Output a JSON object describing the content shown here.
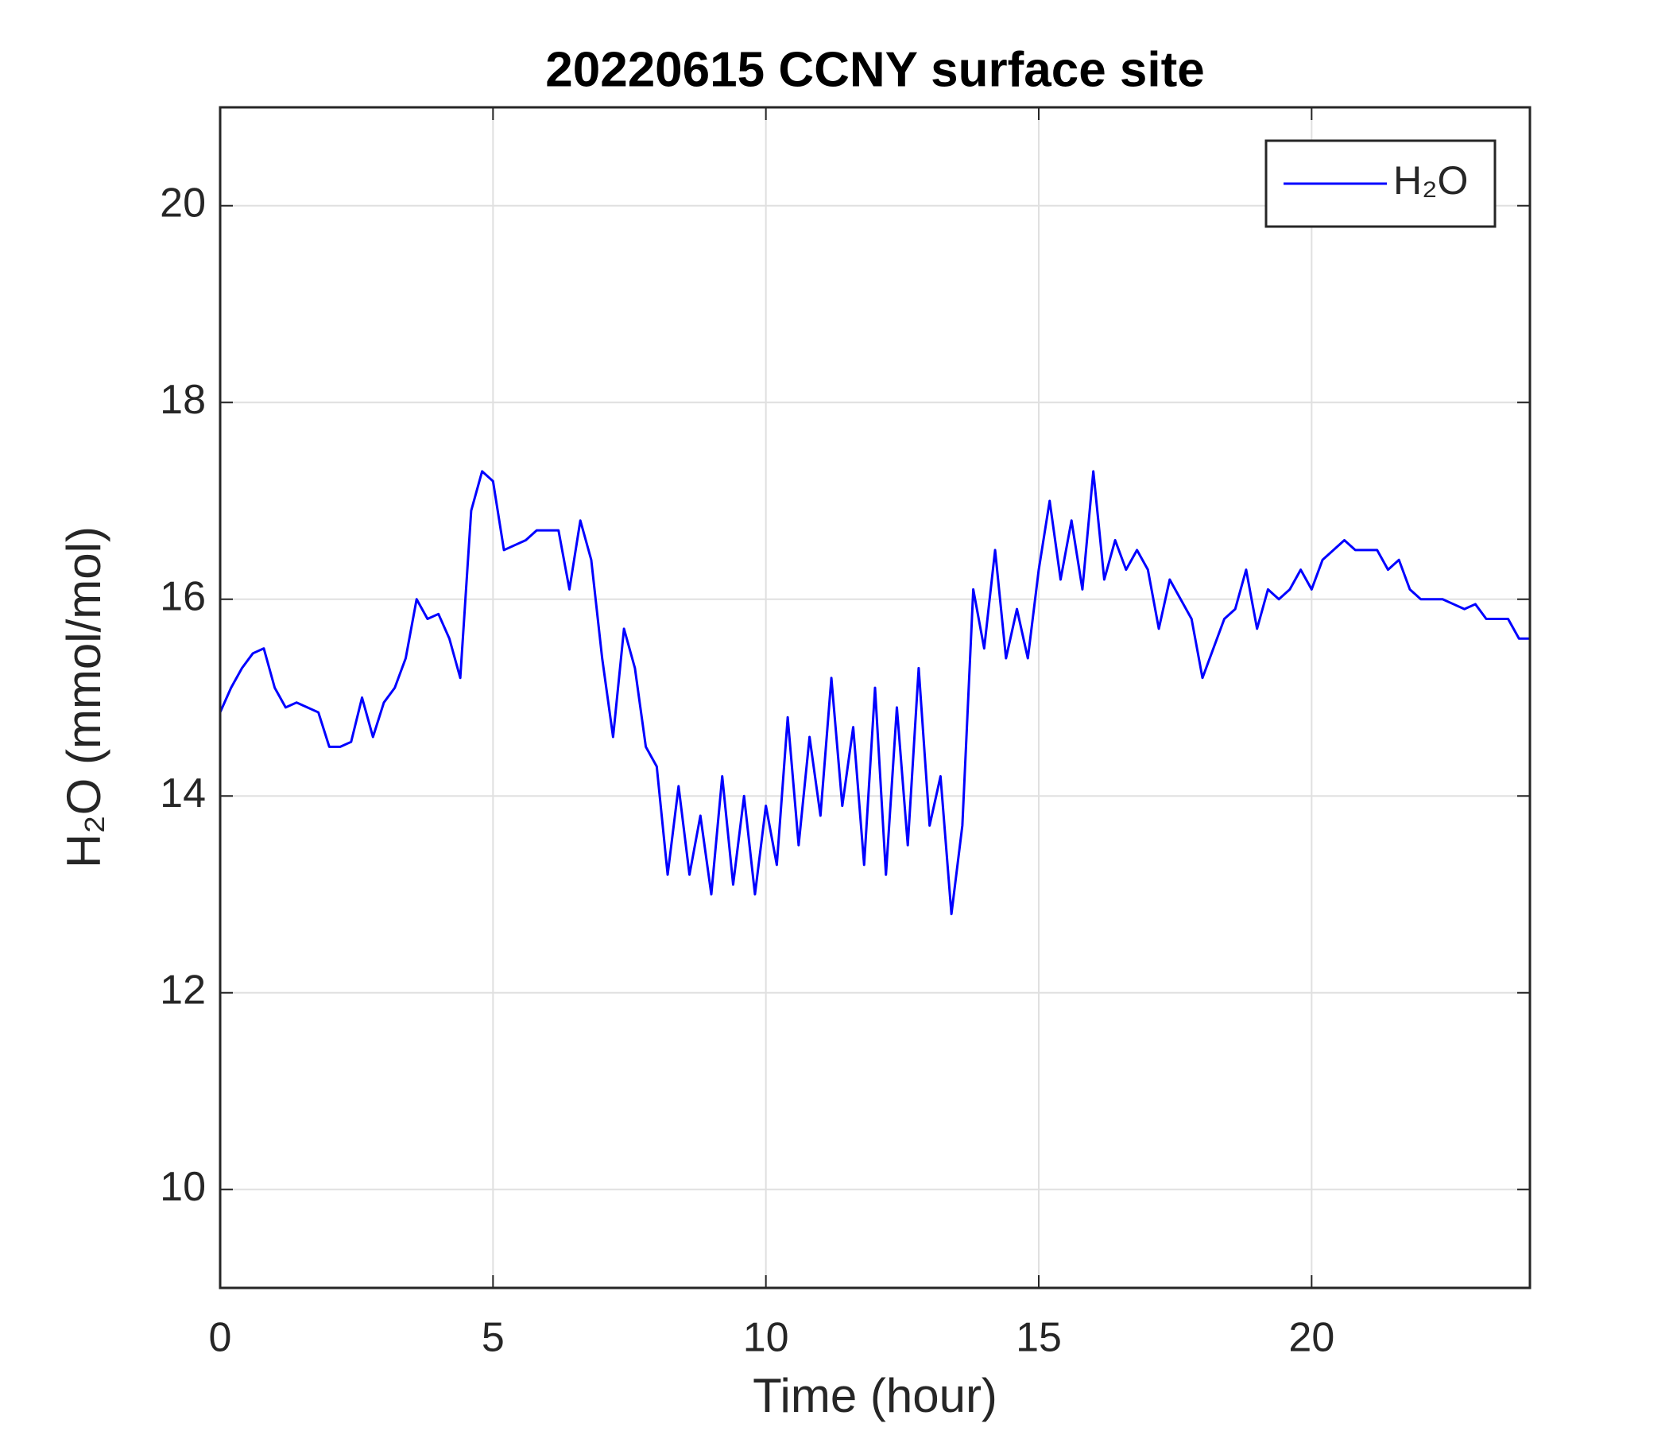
{
  "chart_data": {
    "type": "line",
    "title": "20220615 CCNY surface site",
    "x_label": "Time (hour)",
    "y_label": "H₂O (mmol/mol)",
    "x": [
      0,
      0.2,
      0.4,
      0.6,
      0.8,
      1,
      1.2,
      1.4,
      1.6,
      1.8,
      2,
      2.2,
      2.4,
      2.6,
      2.8,
      3,
      3.2,
      3.4,
      3.6,
      3.8,
      4,
      4.2,
      4.4,
      4.6,
      4.8,
      5,
      5.2,
      5.4,
      5.6,
      5.8,
      6,
      6.2,
      6.4,
      6.6,
      6.8,
      7,
      7.2,
      7.4,
      7.6,
      7.8,
      8,
      8.2,
      8.4,
      8.6,
      8.8,
      9,
      9.2,
      9.4,
      9.6,
      9.8,
      10,
      10.2,
      10.4,
      10.6,
      10.8,
      11,
      11.2,
      11.4,
      11.6,
      11.8,
      12,
      12.2,
      12.4,
      12.6,
      12.8,
      13,
      13.2,
      13.4,
      13.6,
      13.8,
      14,
      14.2,
      14.4,
      14.6,
      14.8,
      15,
      15.2,
      15.4,
      15.6,
      15.8,
      16,
      16.2,
      16.4,
      16.6,
      16.8,
      17,
      17.2,
      17.4,
      17.6,
      17.8,
      18,
      18.2,
      18.4,
      18.6,
      18.8,
      19,
      19.2,
      19.4,
      19.6,
      19.8,
      20,
      20.2,
      20.4,
      20.6,
      20.8,
      21,
      21.2,
      21.4,
      21.6,
      21.8,
      22,
      22.2,
      22.4,
      22.6,
      22.8,
      23,
      23.2,
      23.4,
      23.6,
      23.8,
      24
    ],
    "series": [
      {
        "name": "H₂O",
        "color": "#0000ff",
        "values": [
          14.85,
          15.1,
          15.3,
          15.45,
          15.5,
          15.1,
          14.9,
          14.95,
          14.9,
          14.85,
          14.5,
          14.5,
          14.55,
          15.0,
          14.6,
          14.95,
          15.1,
          15.4,
          16.0,
          15.8,
          15.85,
          15.6,
          15.2,
          16.9,
          17.3,
          17.2,
          16.5,
          16.55,
          16.6,
          16.7,
          16.7,
          16.7,
          16.1,
          16.8,
          16.4,
          15.4,
          14.6,
          15.7,
          15.3,
          14.5,
          14.3,
          13.2,
          14.1,
          13.2,
          13.8,
          13.0,
          14.2,
          13.1,
          14.0,
          13.0,
          13.9,
          13.3,
          14.8,
          13.5,
          14.6,
          13.8,
          15.2,
          13.9,
          14.7,
          13.3,
          15.1,
          13.2,
          14.9,
          13.5,
          15.3,
          13.7,
          14.2,
          12.8,
          13.7,
          16.1,
          15.5,
          16.5,
          15.4,
          15.9,
          15.4,
          16.3,
          17.0,
          16.2,
          16.8,
          16.1,
          17.3,
          16.2,
          16.6,
          16.3,
          16.5,
          16.3,
          15.7,
          16.2,
          16.0,
          15.8,
          15.2,
          15.5,
          15.8,
          15.9,
          16.3,
          15.7,
          16.1,
          16.0,
          16.1,
          16.3,
          16.1,
          16.4,
          16.5,
          16.6,
          16.5,
          16.5,
          16.5,
          16.3,
          16.4,
          16.1,
          16.0,
          16.0,
          16.0,
          15.95,
          15.9,
          15.95,
          15.8,
          15.8,
          15.8,
          15.6,
          15.6
        ]
      }
    ],
    "xlim": [
      0,
      24
    ],
    "ylim": [
      9,
      21
    ],
    "xticks": [
      0,
      5,
      10,
      15,
      20
    ],
    "yticks": [
      10,
      12,
      14,
      16,
      18,
      20
    ],
    "grid": true,
    "legend": "upper right"
  }
}
